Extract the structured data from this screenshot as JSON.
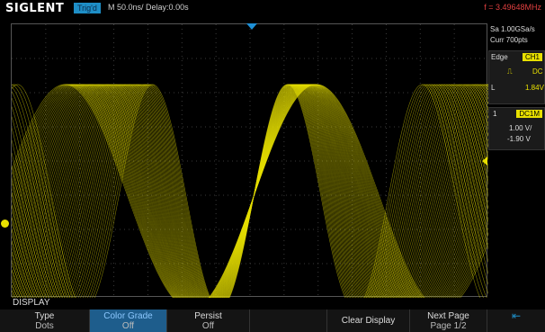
{
  "header": {
    "brand": "SIGLENT",
    "trig_status": "Trig'd",
    "timebase": "M 50.0ns/",
    "delay": "Delay:0.00s",
    "frequency": "f = 3.49648MHz"
  },
  "side_panel": {
    "sample_rate": "Sa 1.00GSa/s",
    "curr_pts": "Curr 700pts",
    "trigger_type": "Edge",
    "trigger_source": "CH1",
    "slope_icon": "rising-edge-icon",
    "coupling": "DC",
    "level_label": "L",
    "level_value": "1.84V",
    "channel_number": "1",
    "channel_coupling": "DC1M",
    "volts_per_div": "1.00 V/",
    "offset": "-1.90 V"
  },
  "menu": {
    "title": "DISPLAY",
    "softkeys": [
      {
        "line1": "Type",
        "line2": "Dots"
      },
      {
        "line1": "Color Grade",
        "line2": "Off"
      },
      {
        "line1": "Persist",
        "line2": "Off"
      },
      {
        "line1": "",
        "line2": ""
      },
      {
        "line1": "Clear Display",
        "line2": ""
      },
      {
        "line1": "Next Page",
        "line2": "Page 1/2"
      },
      {
        "line1": "",
        "line2": ""
      }
    ]
  },
  "colors": {
    "trace": "#e8e000",
    "accent": "#1e8ec6",
    "frequency": "#e04040"
  }
}
